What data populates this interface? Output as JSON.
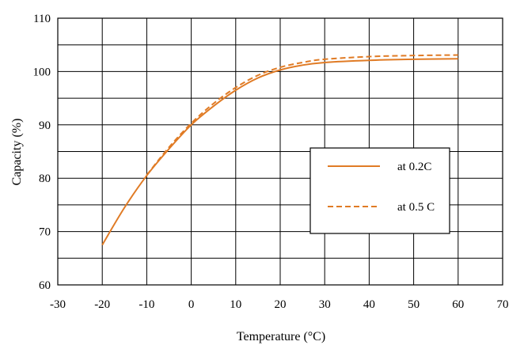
{
  "chart_data": {
    "type": "line",
    "xlabel": "Temperature (°C)",
    "ylabel": "Capacity (%)",
    "xlim": [
      -30,
      70
    ],
    "ylim": [
      60,
      110
    ],
    "x_ticks": [
      "-30",
      "-20",
      "-10",
      "0",
      "10",
      "20",
      "30",
      "40",
      "50",
      "60",
      "70"
    ],
    "y_ticks": [
      "60",
      "70",
      "80",
      "90",
      "100",
      "110"
    ],
    "grid": true,
    "legend_position": "center-right",
    "series": [
      {
        "name": "at 0.2C",
        "style": "solid",
        "color": "#E07B25",
        "x": [
          -20,
          -15,
          -10,
          -5,
          0,
          5,
          10,
          15,
          20,
          25,
          30,
          40,
          50,
          60
        ],
        "y": [
          67.5,
          74.5,
          80.5,
          85.5,
          90,
          93.5,
          96.5,
          98.8,
          100.3,
          101.2,
          101.7,
          102.1,
          102.3,
          102.4
        ]
      },
      {
        "name": "at 0.5 C",
        "style": "dashed",
        "color": "#E07B25",
        "x": [
          -10,
          -5,
          0,
          5,
          10,
          15,
          20,
          25,
          30,
          40,
          50,
          60
        ],
        "y": [
          80.6,
          85.8,
          90.3,
          94,
          97,
          99.3,
          100.8,
          101.7,
          102.3,
          102.8,
          103,
          103.1
        ]
      }
    ]
  }
}
